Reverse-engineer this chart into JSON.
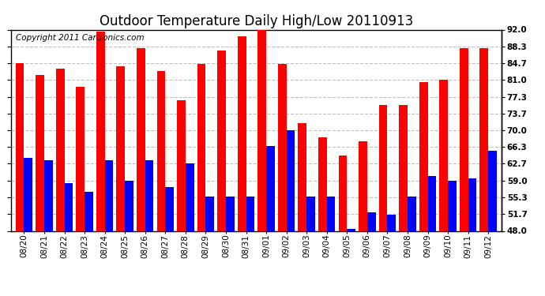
{
  "title": "Outdoor Temperature Daily High/Low 20110913",
  "copyright": "Copyright 2011 Cartronics.com",
  "yticks": [
    48.0,
    51.7,
    55.3,
    59.0,
    62.7,
    66.3,
    70.0,
    73.7,
    77.3,
    81.0,
    84.7,
    88.3,
    92.0
  ],
  "ylim": [
    48.0,
    92.0
  ],
  "dates": [
    "08/20",
    "08/21",
    "08/22",
    "08/23",
    "08/24",
    "08/25",
    "08/26",
    "08/27",
    "08/28",
    "08/29",
    "08/30",
    "08/31",
    "09/01",
    "09/02",
    "09/03",
    "09/04",
    "09/05",
    "09/06",
    "09/07",
    "09/08",
    "09/09",
    "09/10",
    "09/11",
    "09/12"
  ],
  "highs": [
    84.7,
    82.0,
    83.5,
    79.5,
    91.5,
    84.0,
    88.0,
    83.0,
    76.5,
    84.5,
    87.5,
    90.5,
    93.0,
    84.5,
    71.5,
    68.5,
    64.5,
    67.5,
    75.5,
    75.5,
    80.5,
    81.0,
    88.0,
    88.0
  ],
  "lows": [
    64.0,
    63.5,
    58.5,
    56.5,
    63.5,
    59.0,
    63.5,
    57.5,
    62.7,
    55.5,
    55.5,
    55.5,
    66.5,
    70.0,
    55.5,
    55.5,
    48.5,
    52.0,
    51.5,
    55.5,
    60.0,
    59.0,
    59.5,
    65.5
  ],
  "high_color": "#ff0000",
  "low_color": "#0000ff",
  "background_color": "#ffffff",
  "grid_color": "#c0c0c0",
  "bar_width": 0.42,
  "title_fontsize": 12,
  "tick_fontsize": 7.5,
  "copyright_fontsize": 7.5
}
